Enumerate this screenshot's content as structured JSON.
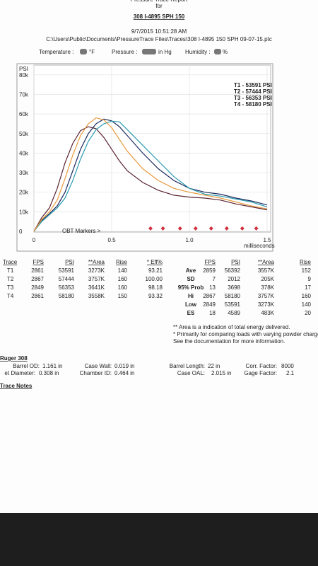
{
  "header": {
    "report_title": "Pressure Trace Report",
    "for": "for",
    "title": "308 I-4895 SPH 150",
    "date": "9/7/2015 10:51:28 AM",
    "file": "C:\\Users\\Public\\Documents\\PressureTrace Files\\Traces\\308 I-4895 150 SPH 09-07-15.ptc",
    "conditions": [
      {
        "label": "Temperature :",
        "unit": "°F"
      },
      {
        "label": "Pressure :",
        "unit": "in Hg"
      },
      {
        "label": "Humidity :",
        "unit": "%"
      }
    ]
  },
  "chart_data": {
    "type": "line",
    "y_label": "PSI",
    "x_label": "milliseconds",
    "x": [
      0,
      0.05,
      0.1,
      0.15,
      0.2,
      0.25,
      0.3,
      0.35,
      0.4,
      0.45,
      0.5,
      0.55,
      0.6,
      0.7,
      0.8,
      0.9,
      1.0,
      1.1,
      1.2,
      1.3,
      1.4,
      1.5
    ],
    "series": [
      {
        "name": "T1 - 53591 PSI",
        "color": "#5a2430",
        "values": [
          0,
          7000,
          12000,
          22000,
          35000,
          45000,
          51500,
          53500,
          52500,
          48000,
          42000,
          36000,
          31000,
          25000,
          21000,
          18500,
          17500,
          17000,
          16000,
          14000,
          12500,
          11000
        ]
      },
      {
        "name": "T2 - 57444 PSI",
        "color": "#1c2a5c",
        "values": [
          0,
          5500,
          9000,
          13000,
          20000,
          31000,
          42000,
          50000,
          55000,
          57400,
          56500,
          53500,
          49000,
          40000,
          32000,
          26000,
          22000,
          20000,
          19000,
          17000,
          15500,
          13500
        ]
      },
      {
        "name": "T3 - 56353 PSI",
        "color": "#2a9bb0",
        "values": [
          0,
          5000,
          8500,
          12000,
          17000,
          26000,
          37000,
          46000,
          52000,
          55000,
          56300,
          56000,
          52000,
          44000,
          36000,
          28000,
          22000,
          19000,
          18000,
          16500,
          15000,
          12500
        ]
      },
      {
        "name": "T4 - 58180 PSI",
        "color": "#e89a3c",
        "values": [
          0,
          6000,
          10000,
          16000,
          27000,
          39000,
          49000,
          55000,
          58000,
          57000,
          53000,
          47000,
          41000,
          32000,
          26000,
          22000,
          20000,
          18500,
          17000,
          15000,
          13000,
          11500
        ]
      }
    ],
    "xlim": [
      0,
      1.5
    ],
    "ylim": [
      0,
      85000
    ],
    "xticks": [
      0,
      0.5,
      {
        "value": 1,
        "label": "1.0"
      },
      1.5
    ],
    "yticks": [
      0,
      {
        "value": 10000,
        "label": "10k"
      },
      {
        "value": 20000,
        "label": "20k"
      },
      {
        "value": 30000,
        "label": "30k"
      },
      {
        "value": 40000,
        "label": "40k"
      },
      {
        "value": 50000,
        "label": "50k"
      },
      {
        "value": 60000,
        "label": "60k"
      },
      {
        "value": 70000,
        "label": "70k"
      },
      {
        "value": 80000,
        "label": "80k"
      }
    ],
    "grid": true,
    "legend": "upper right",
    "annotation": "OBT Markers >",
    "obt_markers": {
      "color": "#d03040",
      "x": [
        0.75,
        0.83,
        0.94,
        1.04,
        1.14,
        1.24,
        1.34,
        1.43
      ],
      "values": [
        1500,
        1500,
        1500,
        1500,
        1500,
        1500,
        1500,
        1500
      ]
    }
  },
  "trace_table": {
    "columns": [
      "Trace",
      "FPS",
      "PSI",
      "**Area",
      "Rise",
      "* Eff%"
    ],
    "rows": [
      [
        "T1",
        "2861",
        "53591",
        "3273K",
        "140",
        "93.21"
      ],
      [
        "T2",
        "2867",
        "57444",
        "3757K",
        "160",
        "100.00"
      ],
      [
        "T3",
        "2849",
        "56353",
        "3641K",
        "160",
        "98.18"
      ],
      [
        "T4",
        "2861",
        "58180",
        "3558K",
        "150",
        "93.32"
      ]
    ]
  },
  "stats_table": {
    "columns": [
      "FPS",
      "PSI",
      "**Area",
      "Rise"
    ],
    "rows": [
      {
        "label": "Ave",
        "cells": [
          "2859",
          "56392",
          "3557K",
          "152"
        ]
      },
      {
        "label": "SD",
        "cells": [
          "7",
          "2012",
          "205K",
          "9"
        ]
      },
      {
        "label": "95% Prob",
        "cells": [
          "13",
          "3698",
          "378K",
          "17"
        ]
      },
      {
        "label": "Hi",
        "cells": [
          "2867",
          "58180",
          "3757K",
          "160"
        ]
      },
      {
        "label": "Low",
        "cells": [
          "2849",
          "53591",
          "3273K",
          "140"
        ]
      },
      {
        "label": "ES",
        "cells": [
          "18",
          "4589",
          "483K",
          "20"
        ]
      }
    ]
  },
  "notes": [
    "** Area is a indication of total energy delivered.",
    "* Primarily for comparing loads with varying powder charge.",
    "See the documentation for more information."
  ],
  "rifle": {
    "name": "Ruger 308",
    "fields": [
      [
        {
          "label": "Barrel OD:",
          "value": "1.161 in"
        },
        {
          "label": "Case Wall:",
          "value": "0.019 in"
        },
        {
          "label": "Barrel Length:",
          "value": "22 in"
        },
        {
          "label": "Corr. Factor:",
          "value": "8000"
        }
      ],
      [
        {
          "label": "et Diameter:",
          "value": "0.308 in"
        },
        {
          "label": "Chamber ID:",
          "value": "0.464 in"
        },
        {
          "label": "Case OAL:",
          "value": "2.015 in"
        },
        {
          "label": "Gage Factor:",
          "value": "2.1"
        }
      ]
    ]
  },
  "trace_notes": "Trace Notes"
}
